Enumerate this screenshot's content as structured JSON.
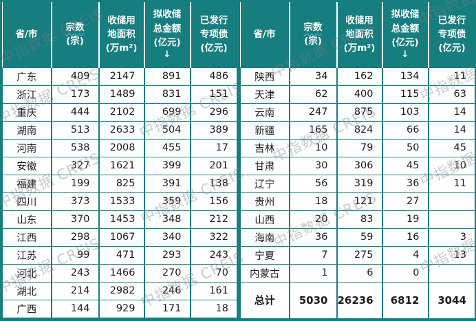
{
  "watermark": {
    "text": "中指数据 CREIS"
  },
  "colors": {
    "teal": "#177E80",
    "header_text": "#FFFFFF",
    "body_text": "#1A1A1A",
    "wavy_underline": "#6FB3E8",
    "watermark_gray": "#767C80"
  },
  "table": {
    "columns": [
      {
        "label": "省/市"
      },
      {
        "main": "宗数",
        "sub": "(宗)",
        "wavy_underline": true
      },
      {
        "label": "收储用\n地面积\n(万m²)"
      },
      {
        "label": "拟收储\n总金额\n(亿元)",
        "sort_arrow": "↓"
      },
      {
        "label": "已发行\n专项债\n(亿元)"
      }
    ],
    "left_rows": [
      [
        "广东",
        "409",
        "2147",
        "891",
        "486"
      ],
      [
        "浙江",
        "173",
        "1489",
        "831",
        "151"
      ],
      [
        "重庆",
        "444",
        "2102",
        "699",
        "296"
      ],
      [
        "湖南",
        "513",
        "2633",
        "504",
        "389"
      ],
      [
        "河南",
        "538",
        "2008",
        "455",
        "17"
      ],
      [
        "安徽",
        "327",
        "1621",
        "399",
        "201"
      ],
      [
        "福建",
        "199",
        "825",
        "391",
        "138"
      ],
      [
        "四川",
        "373",
        "1533",
        "359",
        "156"
      ],
      [
        "山东",
        "370",
        "1453",
        "348",
        "212"
      ],
      [
        "江西",
        "298",
        "1067",
        "340",
        "322"
      ],
      [
        "江苏",
        "99",
        "471",
        "293",
        "243"
      ],
      [
        "河北",
        "243",
        "1466",
        "270",
        "70"
      ],
      [
        "湖北",
        "214",
        "2982",
        "246",
        "161"
      ],
      [
        "广西",
        "144",
        "929",
        "171",
        "18"
      ]
    ],
    "right_rows": [
      [
        "陕西",
        "34",
        "162",
        "134",
        "11"
      ],
      [
        "天津",
        "62",
        "400",
        "115",
        "63"
      ],
      [
        "云南",
        "247",
        "875",
        "103",
        "14"
      ],
      [
        "新疆",
        "165",
        "824",
        "66",
        "14"
      ],
      [
        "吉林",
        "10",
        "79",
        "50",
        "45"
      ],
      [
        "甘肃",
        "30",
        "306",
        "45",
        "10"
      ],
      [
        "辽宁",
        "56",
        "319",
        "36",
        "11"
      ],
      [
        "贵州",
        "18",
        "121",
        "27",
        ""
      ],
      [
        "山西",
        "20",
        "83",
        "19",
        ""
      ],
      [
        "海南",
        "36",
        "59",
        "16",
        "3"
      ],
      [
        "宁夏",
        "7",
        "275",
        "4",
        "13"
      ],
      [
        "内蒙古",
        "1",
        "6",
        "0",
        ""
      ]
    ],
    "total_row": [
      "总计",
      "5030",
      "26236",
      "6812",
      "3044"
    ]
  },
  "chart_data": {
    "type": "table",
    "title": "",
    "layout": "two side-by-side panels sharing identical headers; right panel ends with bold total row",
    "columns": [
      "省/市",
      "宗数(宗)",
      "收储用地面积(万m²)",
      "拟收储总金额(亿元)",
      "已发行专项债(亿元)"
    ],
    "rows": [
      [
        "广东",
        409,
        2147,
        891,
        486
      ],
      [
        "浙江",
        173,
        1489,
        831,
        151
      ],
      [
        "重庆",
        444,
        2102,
        699,
        296
      ],
      [
        "湖南",
        513,
        2633,
        504,
        389
      ],
      [
        "河南",
        538,
        2008,
        455,
        17
      ],
      [
        "安徽",
        327,
        1621,
        399,
        201
      ],
      [
        "福建",
        199,
        825,
        391,
        138
      ],
      [
        "四川",
        373,
        1533,
        359,
        156
      ],
      [
        "山东",
        370,
        1453,
        348,
        212
      ],
      [
        "江西",
        298,
        1067,
        340,
        322
      ],
      [
        "江苏",
        99,
        471,
        293,
        243
      ],
      [
        "河北",
        243,
        1466,
        270,
        70
      ],
      [
        "湖北",
        214,
        2982,
        246,
        161
      ],
      [
        "广西",
        144,
        929,
        171,
        18
      ],
      [
        "陕西",
        34,
        162,
        134,
        11
      ],
      [
        "天津",
        62,
        400,
        115,
        63
      ],
      [
        "云南",
        247,
        875,
        103,
        14
      ],
      [
        "新疆",
        165,
        824,
        66,
        14
      ],
      [
        "吉林",
        10,
        79,
        50,
        45
      ],
      [
        "甘肃",
        30,
        306,
        45,
        10
      ],
      [
        "辽宁",
        56,
        319,
        36,
        11
      ],
      [
        "贵州",
        18,
        121,
        27,
        null
      ],
      [
        "山西",
        20,
        83,
        19,
        null
      ],
      [
        "海南",
        36,
        59,
        16,
        3
      ],
      [
        "宁夏",
        7,
        275,
        4,
        13
      ],
      [
        "内蒙古",
        1,
        6,
        0,
        null
      ]
    ],
    "total": [
      "总计",
      5030,
      26236,
      6812,
      3044
    ],
    "sort_indicator_column": "拟收储总金额(亿元)"
  }
}
